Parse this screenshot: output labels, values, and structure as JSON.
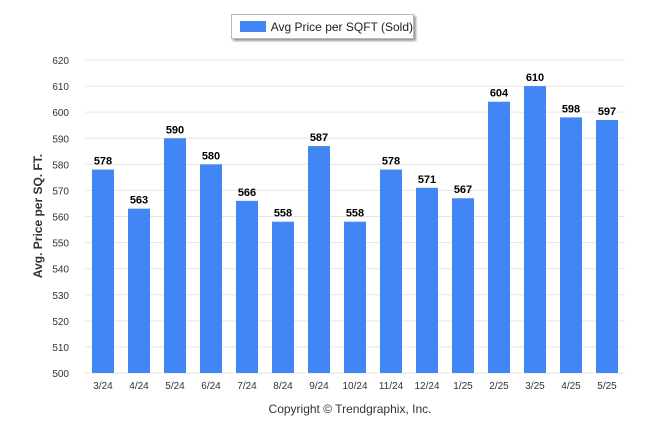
{
  "chart_data": {
    "type": "bar",
    "categories": [
      "3/24",
      "4/24",
      "5/24",
      "6/24",
      "7/24",
      "8/24",
      "9/24",
      "10/24",
      "11/24",
      "12/24",
      "1/25",
      "2/25",
      "3/25",
      "4/25",
      "5/25"
    ],
    "series": [
      {
        "name": "Avg Price per SQFT (Sold)",
        "color": "#4285f4",
        "values": [
          578,
          563,
          590,
          580,
          566,
          558,
          587,
          558,
          578,
          571,
          567,
          604,
          610,
          598,
          597
        ]
      }
    ],
    "ylabel": "Avg. Price per SQ. FT.",
    "ylim": [
      500,
      620
    ],
    "yticks": [
      500,
      510,
      520,
      530,
      540,
      550,
      560,
      570,
      580,
      590,
      600,
      610,
      620
    ],
    "grid": true,
    "legend_position": "top-center",
    "data_labels": true
  },
  "footer": {
    "credit": "Copyright © Trendgraphix, Inc."
  }
}
